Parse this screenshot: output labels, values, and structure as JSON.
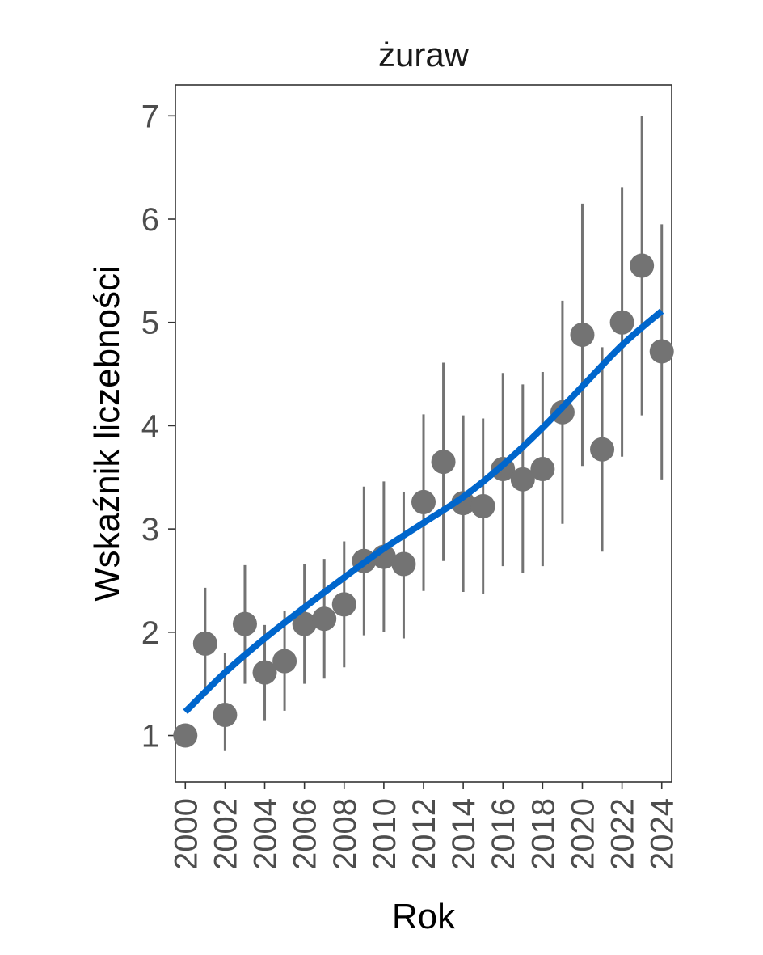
{
  "chart_data": {
    "type": "scatter",
    "title": "żuraw",
    "xlabel": "Rok",
    "ylabel": "Wskaźnik liczebności",
    "xlim": [
      1999.5,
      2024.5
    ],
    "ylim": [
      0.55,
      7.3
    ],
    "x_ticks": [
      "2000",
      "2002",
      "2004",
      "2006",
      "2008",
      "2010",
      "2012",
      "2014",
      "2016",
      "2018",
      "2020",
      "2022",
      "2024"
    ],
    "y_ticks": [
      "1",
      "2",
      "3",
      "4",
      "5",
      "6",
      "7"
    ],
    "grid": false,
    "colors": {
      "points": "#737373",
      "trend": "#0066cc",
      "frame": "#333333"
    },
    "series": [
      {
        "type": "points_with_errorbars",
        "x": [
          2000,
          2001,
          2002,
          2003,
          2004,
          2005,
          2006,
          2007,
          2008,
          2009,
          2010,
          2011,
          2012,
          2013,
          2014,
          2015,
          2016,
          2017,
          2018,
          2019,
          2020,
          2021,
          2022,
          2023,
          2024
        ],
        "y": [
          1.0,
          1.89,
          1.2,
          2.08,
          1.61,
          1.72,
          2.08,
          2.13,
          2.27,
          2.69,
          2.73,
          2.66,
          3.26,
          3.65,
          3.25,
          3.22,
          3.58,
          3.48,
          3.58,
          4.13,
          4.88,
          3.77,
          5.0,
          5.55,
          4.72
        ],
        "lower": [
          null,
          1.38,
          0.85,
          1.5,
          1.14,
          1.24,
          1.5,
          1.55,
          1.66,
          1.97,
          2.0,
          1.94,
          2.4,
          2.69,
          2.39,
          2.37,
          2.64,
          2.57,
          2.64,
          3.05,
          3.61,
          2.78,
          3.7,
          4.1,
          3.48
        ],
        "upper": [
          null,
          2.43,
          1.8,
          2.65,
          2.07,
          2.21,
          2.66,
          2.71,
          2.88,
          3.41,
          3.46,
          3.36,
          4.11,
          4.61,
          4.1,
          4.07,
          4.51,
          4.4,
          4.52,
          5.21,
          6.15,
          4.76,
          6.31,
          7.0,
          5.95
        ]
      },
      {
        "type": "trend_line",
        "x": [
          2000,
          2002,
          2004,
          2006,
          2008,
          2010,
          2012,
          2014,
          2016,
          2018,
          2020,
          2022,
          2024
        ],
        "y": [
          1.23,
          1.61,
          1.94,
          2.24,
          2.53,
          2.81,
          3.06,
          3.31,
          3.62,
          3.98,
          4.38,
          4.78,
          5.11
        ]
      }
    ]
  }
}
